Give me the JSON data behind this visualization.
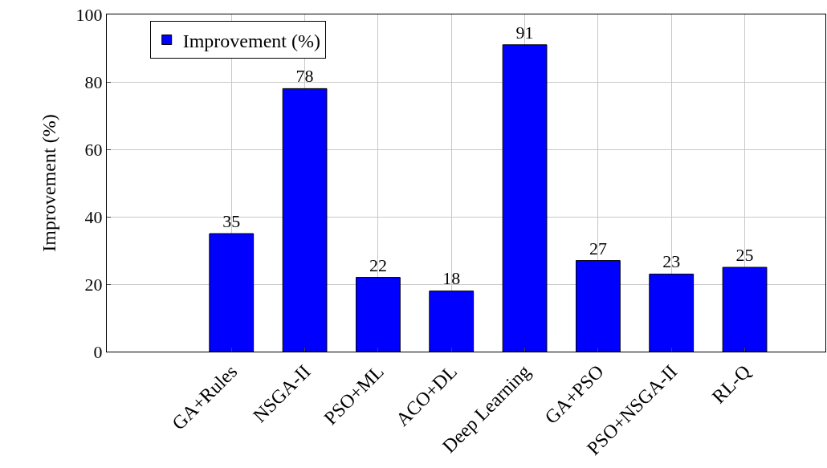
{
  "chart_data": {
    "type": "bar",
    "ylabel": "Improvement (%)",
    "categories": [
      "GA+Rules",
      "NSGA-II",
      "PSO+ML",
      "ACO+DL",
      "Deep Learning",
      "GA+PSO",
      "PSO+NSGA-II",
      "RL-Q"
    ],
    "series": [
      {
        "name": "Improvement (%)",
        "color": "#0000ff",
        "values": [
          35,
          78,
          22,
          18,
          91,
          27,
          23,
          25
        ]
      }
    ],
    "ylim": [
      0,
      100
    ],
    "yticks": [
      0,
      20,
      40,
      60,
      80,
      100
    ],
    "grid": true,
    "legend": "top left",
    "data_labels": true
  }
}
